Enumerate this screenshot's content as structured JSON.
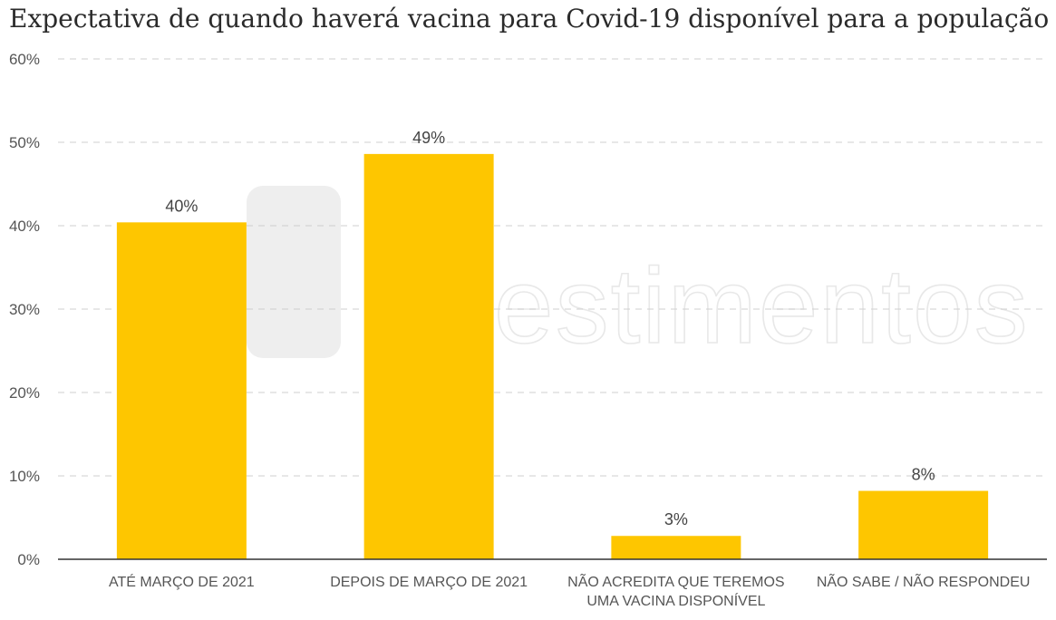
{
  "chart_data": {
    "type": "bar",
    "title": "Expectativa de quando haverá vacina para Covid-19 disponível para a população",
    "categories": [
      [
        "ATÉ MARÇO DE 2021"
      ],
      [
        "DEPOIS DE MARÇO DE 2021"
      ],
      [
        "NÃO ACREDITA QUE TEREMOS",
        "UMA VACINA DISPONÍVEL"
      ],
      [
        "NÃO SABE / NÃO RESPONDEU"
      ]
    ],
    "values": [
      40.4,
      48.6,
      2.8,
      8.2
    ],
    "value_labels": [
      "40%",
      "49%",
      "3%",
      "8%"
    ],
    "ylim": [
      0,
      60
    ],
    "yticks": [
      0,
      10,
      20,
      30,
      40,
      50,
      60
    ],
    "ytick_labels": [
      "0%",
      "10%",
      "20%",
      "30%",
      "40%",
      "50%",
      "60%"
    ],
    "grid": true,
    "bar_color": "#fec600"
  },
  "watermark": {
    "text": "estimentos"
  }
}
